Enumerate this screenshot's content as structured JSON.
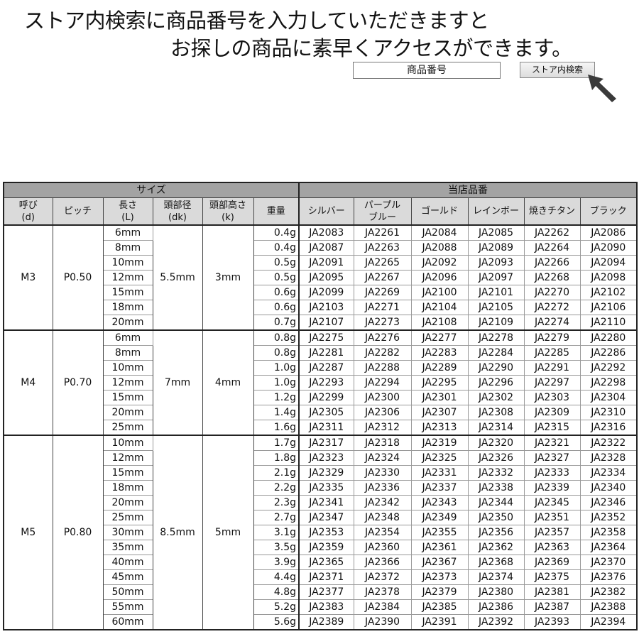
{
  "banner": {
    "line1": "ストア内検索に商品番号を入力していただきますと",
    "line2": "お探しの商品に素早くアクセスができます。"
  },
  "search": {
    "placeholder": "商品番号",
    "button_label": "ストア内検索",
    "cursor_icon": "arrow-pointer-icon"
  },
  "table": {
    "group_headers": {
      "size": "サイズ",
      "codes": "当店品番"
    },
    "columns": [
      {
        "line1": "呼び",
        "line2": "(d)"
      },
      {
        "line1": "ピッチ",
        "line2": ""
      },
      {
        "line1": "長さ",
        "line2": "(L)"
      },
      {
        "line1": "頭部径",
        "line2": "(dk)"
      },
      {
        "line1": "頭部高さ",
        "line2": "(k)"
      },
      {
        "line1": "重量",
        "line2": ""
      },
      {
        "line1": "シルバー",
        "line2": ""
      },
      {
        "line1": "パープル",
        "line2": "ブルー"
      },
      {
        "line1": "ゴールド",
        "line2": ""
      },
      {
        "line1": "レインボー",
        "line2": ""
      },
      {
        "line1": "焼きチタン",
        "line2": ""
      },
      {
        "line1": "ブラック",
        "line2": ""
      }
    ],
    "groups": [
      {
        "nominal": "M3",
        "pitch": "P0.50",
        "head_dia": "5.5mm",
        "head_height": "3mm",
        "rows": [
          {
            "length": "6mm",
            "weight": "0.4g",
            "codes": [
              "JA2083",
              "JA2261",
              "JA2084",
              "JA2085",
              "JA2262",
              "JA2086"
            ]
          },
          {
            "length": "8mm",
            "weight": "0.4g",
            "codes": [
              "JA2087",
              "JA2263",
              "JA2088",
              "JA2089",
              "JA2264",
              "JA2090"
            ]
          },
          {
            "length": "10mm",
            "weight": "0.5g",
            "codes": [
              "JA2091",
              "JA2265",
              "JA2092",
              "JA2093",
              "JA2266",
              "JA2094"
            ]
          },
          {
            "length": "12mm",
            "weight": "0.5g",
            "codes": [
              "JA2095",
              "JA2267",
              "JA2096",
              "JA2097",
              "JA2268",
              "JA2098"
            ]
          },
          {
            "length": "15mm",
            "weight": "0.6g",
            "codes": [
              "JA2099",
              "JA2269",
              "JA2100",
              "JA2101",
              "JA2270",
              "JA2102"
            ]
          },
          {
            "length": "18mm",
            "weight": "0.6g",
            "codes": [
              "JA2103",
              "JA2271",
              "JA2104",
              "JA2105",
              "JA2272",
              "JA2106"
            ]
          },
          {
            "length": "20mm",
            "weight": "0.7g",
            "codes": [
              "JA2107",
              "JA2273",
              "JA2108",
              "JA2109",
              "JA2274",
              "JA2110"
            ]
          }
        ]
      },
      {
        "nominal": "M4",
        "pitch": "P0.70",
        "head_dia": "7mm",
        "head_height": "4mm",
        "rows": [
          {
            "length": "6mm",
            "weight": "0.8g",
            "codes": [
              "JA2275",
              "JA2276",
              "JA2277",
              "JA2278",
              "JA2279",
              "JA2280"
            ]
          },
          {
            "length": "8mm",
            "weight": "0.8g",
            "codes": [
              "JA2281",
              "JA2282",
              "JA2283",
              "JA2284",
              "JA2285",
              "JA2286"
            ]
          },
          {
            "length": "10mm",
            "weight": "1.0g",
            "codes": [
              "JA2287",
              "JA2288",
              "JA2289",
              "JA2290",
              "JA2291",
              "JA2292"
            ]
          },
          {
            "length": "12mm",
            "weight": "1.0g",
            "codes": [
              "JA2293",
              "JA2294",
              "JA2295",
              "JA2296",
              "JA2297",
              "JA2298"
            ]
          },
          {
            "length": "15mm",
            "weight": "1.2g",
            "codes": [
              "JA2299",
              "JA2300",
              "JA2301",
              "JA2302",
              "JA2303",
              "JA2304"
            ]
          },
          {
            "length": "20mm",
            "weight": "1.4g",
            "codes": [
              "JA2305",
              "JA2306",
              "JA2307",
              "JA2308",
              "JA2309",
              "JA2310"
            ]
          },
          {
            "length": "25mm",
            "weight": "1.6g",
            "codes": [
              "JA2311",
              "JA2312",
              "JA2313",
              "JA2314",
              "JA2315",
              "JA2316"
            ]
          }
        ]
      },
      {
        "nominal": "M5",
        "pitch": "P0.80",
        "head_dia": "8.5mm",
        "head_height": "5mm",
        "rows": [
          {
            "length": "10mm",
            "weight": "1.7g",
            "codes": [
              "JA2317",
              "JA2318",
              "JA2319",
              "JA2320",
              "JA2321",
              "JA2322"
            ]
          },
          {
            "length": "12mm",
            "weight": "1.8g",
            "codes": [
              "JA2323",
              "JA2324",
              "JA2325",
              "JA2326",
              "JA2327",
              "JA2328"
            ]
          },
          {
            "length": "15mm",
            "weight": "2.1g",
            "codes": [
              "JA2329",
              "JA2330",
              "JA2331",
              "JA2332",
              "JA2333",
              "JA2334"
            ]
          },
          {
            "length": "18mm",
            "weight": "2.2g",
            "codes": [
              "JA2335",
              "JA2336",
              "JA2337",
              "JA2338",
              "JA2339",
              "JA2340"
            ]
          },
          {
            "length": "20mm",
            "weight": "2.3g",
            "codes": [
              "JA2341",
              "JA2342",
              "JA2343",
              "JA2344",
              "JA2345",
              "JA2346"
            ]
          },
          {
            "length": "25mm",
            "weight": "2.7g",
            "codes": [
              "JA2347",
              "JA2348",
              "JA2349",
              "JA2350",
              "JA2351",
              "JA2352"
            ]
          },
          {
            "length": "30mm",
            "weight": "3.1g",
            "codes": [
              "JA2353",
              "JA2354",
              "JA2355",
              "JA2356",
              "JA2357",
              "JA2358"
            ]
          },
          {
            "length": "35mm",
            "weight": "3.5g",
            "codes": [
              "JA2359",
              "JA2360",
              "JA2361",
              "JA2362",
              "JA2363",
              "JA2364"
            ]
          },
          {
            "length": "40mm",
            "weight": "3.9g",
            "codes": [
              "JA2365",
              "JA2366",
              "JA2367",
              "JA2368",
              "JA2369",
              "JA2370"
            ]
          },
          {
            "length": "45mm",
            "weight": "4.4g",
            "codes": [
              "JA2371",
              "JA2372",
              "JA2373",
              "JA2374",
              "JA2375",
              "JA2376"
            ]
          },
          {
            "length": "50mm",
            "weight": "4.8g",
            "codes": [
              "JA2377",
              "JA2378",
              "JA2379",
              "JA2380",
              "JA2381",
              "JA2382"
            ]
          },
          {
            "length": "55mm",
            "weight": "5.2g",
            "codes": [
              "JA2383",
              "JA2384",
              "JA2385",
              "JA2386",
              "JA2387",
              "JA2388"
            ]
          },
          {
            "length": "60mm",
            "weight": "5.6g",
            "codes": [
              "JA2389",
              "JA2390",
              "JA2391",
              "JA2392",
              "JA2393",
              "JA2394"
            ]
          }
        ]
      }
    ]
  }
}
